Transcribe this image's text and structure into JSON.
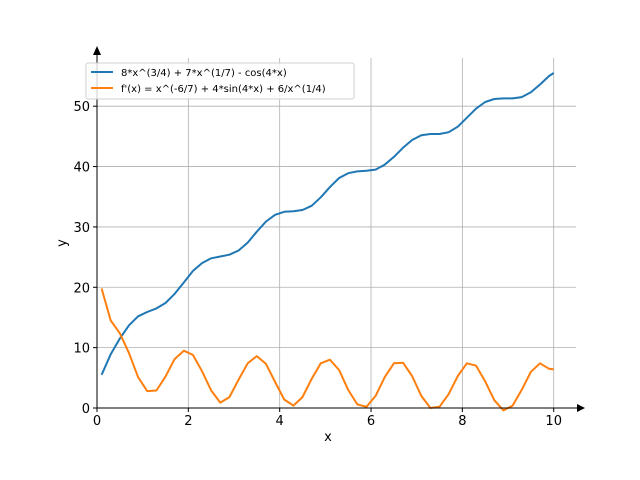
{
  "chart_data": {
    "type": "line",
    "xlabel": "x",
    "ylabel": "y",
    "xlim": [
      0,
      10.5
    ],
    "ylim": [
      0,
      56
    ],
    "grid": true,
    "legend_position": "top-left",
    "x_ticks": [
      0,
      2,
      4,
      6,
      8,
      10
    ],
    "y_ticks": [
      0,
      10,
      20,
      30,
      40,
      50
    ],
    "series": [
      {
        "name": "8*x^(3/4) + 7*x^(1/7) - cos(4*x)",
        "color": "#1f77b4",
        "x": [
          0.1,
          0.3,
          0.5,
          0.7,
          0.9,
          1.1,
          1.3,
          1.5,
          1.7,
          1.9,
          2.1,
          2.3,
          2.5,
          2.7,
          2.9,
          3.1,
          3.3,
          3.5,
          3.7,
          3.9,
          4.1,
          4.3,
          4.5,
          4.7,
          4.9,
          5.1,
          5.3,
          5.5,
          5.7,
          5.9,
          6.1,
          6.3,
          6.5,
          6.7,
          6.9,
          7.1,
          7.3,
          7.5,
          7.7,
          7.9,
          8.1,
          8.3,
          8.5,
          8.7,
          8.9,
          9.1,
          9.3,
          9.5,
          9.7,
          9.9,
          10.0
        ],
        "y": [
          5.5,
          8.9,
          11.5,
          13.7,
          15.2,
          15.9,
          16.5,
          17.4,
          18.9,
          20.8,
          22.7,
          24.0,
          24.8,
          25.1,
          25.4,
          26.1,
          27.4,
          29.2,
          30.9,
          32.0,
          32.5,
          32.6,
          32.8,
          33.5,
          34.9,
          36.6,
          38.1,
          38.9,
          39.2,
          39.3,
          39.5,
          40.3,
          41.6,
          43.1,
          44.4,
          45.2,
          45.4,
          45.4,
          45.7,
          46.6,
          48.1,
          49.6,
          50.7,
          51.2,
          51.3,
          51.3,
          51.5,
          52.3,
          53.6,
          55.0,
          55.5
        ]
      },
      {
        "name": "f'(x) = x^(-6/7) + 4*sin(4*x) + 6/x^(1/4)",
        "color": "#ff7f0e",
        "x": [
          0.1,
          0.3,
          0.5,
          0.7,
          0.9,
          1.1,
          1.3,
          1.5,
          1.7,
          1.9,
          2.1,
          2.3,
          2.5,
          2.7,
          2.9,
          3.1,
          3.3,
          3.5,
          3.7,
          3.9,
          4.1,
          4.3,
          4.5,
          4.7,
          4.9,
          5.1,
          5.3,
          5.5,
          5.7,
          5.9,
          6.1,
          6.3,
          6.5,
          6.7,
          6.9,
          7.1,
          7.3,
          7.5,
          7.7,
          7.9,
          8.1,
          8.3,
          8.5,
          8.7,
          8.9,
          9.1,
          9.3,
          9.5,
          9.7,
          9.9,
          10.0
        ],
        "y": [
          19.8,
          14.5,
          12.4,
          9.1,
          5.1,
          2.8,
          2.9,
          5.2,
          8.1,
          9.5,
          8.8,
          6.1,
          2.9,
          0.9,
          1.8,
          4.7,
          7.4,
          8.6,
          7.3,
          4.3,
          1.4,
          0.4,
          1.8,
          4.8,
          7.4,
          8.0,
          6.3,
          3.0,
          0.6,
          0.2,
          2.0,
          5.1,
          7.4,
          7.5,
          5.3,
          2.0,
          0.0,
          0.2,
          2.3,
          5.3,
          7.4,
          7.0,
          4.4,
          1.3,
          -0.4,
          0.4,
          3.0,
          6.0,
          7.4,
          6.5,
          6.4
        ]
      }
    ]
  }
}
